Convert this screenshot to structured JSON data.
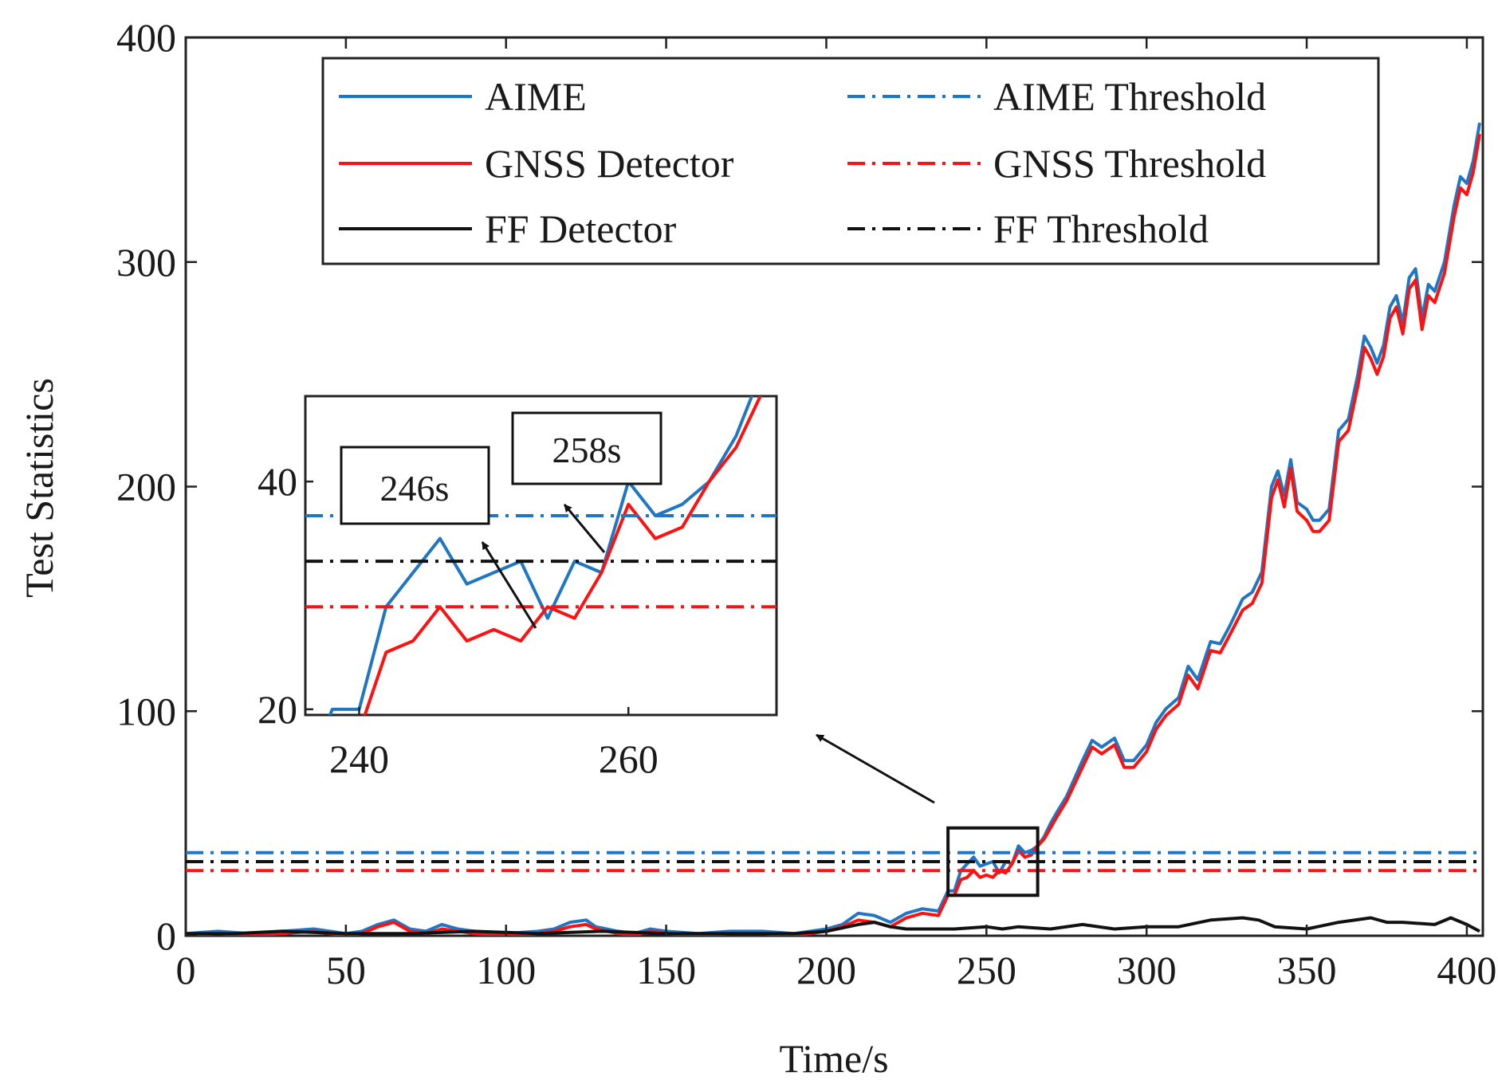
{
  "chart_data": {
    "type": "line",
    "xlabel": "Time/s",
    "ylabel": "Test Statistics",
    "xlim": [
      0,
      405
    ],
    "ylim": [
      0,
      400
    ],
    "xticks": [
      0,
      50,
      100,
      150,
      200,
      250,
      300,
      350,
      400
    ],
    "yticks": [
      0,
      100,
      200,
      300,
      400
    ],
    "x_tick_labels": [
      "0",
      "50",
      "100",
      "150",
      "200",
      "250",
      "300",
      "350",
      "400"
    ],
    "y_tick_labels": [
      "0",
      "100",
      "200",
      "300",
      "400"
    ],
    "legend_position": "top",
    "colors": {
      "aime": "#1f77c4",
      "gnss": "#ff1111",
      "ff": "#111111"
    },
    "series": [
      {
        "key": "aime",
        "name": "AIME",
        "style": "solid",
        "color": "#1f77c4",
        "points": [
          [
            0,
            1
          ],
          [
            10,
            2
          ],
          [
            20,
            1
          ],
          [
            30,
            2
          ],
          [
            40,
            3
          ],
          [
            50,
            1
          ],
          [
            55,
            2
          ],
          [
            60,
            5
          ],
          [
            65,
            7
          ],
          [
            70,
            3
          ],
          [
            75,
            2
          ],
          [
            80,
            5
          ],
          [
            85,
            3
          ],
          [
            90,
            2
          ],
          [
            100,
            1
          ],
          [
            110,
            2
          ],
          [
            115,
            3
          ],
          [
            120,
            6
          ],
          [
            125,
            7
          ],
          [
            128,
            4
          ],
          [
            135,
            2
          ],
          [
            140,
            1
          ],
          [
            145,
            3
          ],
          [
            150,
            2
          ],
          [
            160,
            1
          ],
          [
            170,
            2
          ],
          [
            180,
            2
          ],
          [
            190,
            1
          ],
          [
            200,
            3
          ],
          [
            205,
            5
          ],
          [
            210,
            10
          ],
          [
            215,
            9
          ],
          [
            220,
            6
          ],
          [
            225,
            10
          ],
          [
            230,
            12
          ],
          [
            235,
            11
          ],
          [
            238,
            20
          ],
          [
            240,
            20
          ],
          [
            242,
            29
          ],
          [
            244,
            32
          ],
          [
            246,
            35
          ],
          [
            248,
            31
          ],
          [
            250,
            32
          ],
          [
            252,
            33
          ],
          [
            254,
            28
          ],
          [
            256,
            33
          ],
          [
            258,
            32
          ],
          [
            260,
            40
          ],
          [
            262,
            37
          ],
          [
            264,
            38
          ],
          [
            266,
            40
          ],
          [
            268,
            44
          ],
          [
            270,
            50
          ],
          [
            272,
            55
          ],
          [
            275,
            62
          ],
          [
            280,
            78
          ],
          [
            283,
            87
          ],
          [
            286,
            84
          ],
          [
            290,
            88
          ],
          [
            293,
            78
          ],
          [
            296,
            78
          ],
          [
            300,
            85
          ],
          [
            303,
            95
          ],
          [
            306,
            101
          ],
          [
            310,
            106
          ],
          [
            313,
            120
          ],
          [
            316,
            114
          ],
          [
            320,
            131
          ],
          [
            323,
            130
          ],
          [
            326,
            138
          ],
          [
            330,
            150
          ],
          [
            333,
            153
          ],
          [
            336,
            162
          ],
          [
            339,
            200
          ],
          [
            341,
            207
          ],
          [
            343,
            196
          ],
          [
            345,
            212
          ],
          [
            347,
            193
          ],
          [
            350,
            190
          ],
          [
            352,
            185
          ],
          [
            354,
            185
          ],
          [
            357,
            190
          ],
          [
            360,
            225
          ],
          [
            363,
            230
          ],
          [
            366,
            250
          ],
          [
            368,
            267
          ],
          [
            370,
            262
          ],
          [
            372,
            255
          ],
          [
            374,
            263
          ],
          [
            376,
            280
          ],
          [
            378,
            285
          ],
          [
            380,
            273
          ],
          [
            382,
            293
          ],
          [
            384,
            297
          ],
          [
            386,
            275
          ],
          [
            388,
            290
          ],
          [
            390,
            287
          ],
          [
            393,
            300
          ],
          [
            396,
            325
          ],
          [
            398,
            338
          ],
          [
            400,
            335
          ],
          [
            402,
            345
          ],
          [
            404,
            362
          ]
        ]
      },
      {
        "key": "gnss",
        "name": "GNSS Detector",
        "style": "solid",
        "color": "#ff1111",
        "points": [
          [
            0,
            0
          ],
          [
            10,
            1
          ],
          [
            20,
            0
          ],
          [
            30,
            1
          ],
          [
            40,
            2
          ],
          [
            50,
            0
          ],
          [
            55,
            1
          ],
          [
            60,
            4
          ],
          [
            65,
            6
          ],
          [
            70,
            2
          ],
          [
            75,
            1
          ],
          [
            80,
            3
          ],
          [
            85,
            2
          ],
          [
            90,
            1
          ],
          [
            100,
            0
          ],
          [
            110,
            1
          ],
          [
            115,
            2
          ],
          [
            120,
            4
          ],
          [
            125,
            5
          ],
          [
            128,
            3
          ],
          [
            135,
            1
          ],
          [
            140,
            0
          ],
          [
            145,
            2
          ],
          [
            150,
            1
          ],
          [
            160,
            0
          ],
          [
            170,
            1
          ],
          [
            180,
            1
          ],
          [
            190,
            0
          ],
          [
            200,
            2
          ],
          [
            205,
            4
          ],
          [
            210,
            7
          ],
          [
            215,
            6
          ],
          [
            220,
            4
          ],
          [
            225,
            8
          ],
          [
            230,
            10
          ],
          [
            235,
            9
          ],
          [
            238,
            18
          ],
          [
            240,
            18
          ],
          [
            242,
            25
          ],
          [
            244,
            26
          ],
          [
            246,
            29
          ],
          [
            248,
            26
          ],
          [
            250,
            27
          ],
          [
            252,
            26
          ],
          [
            254,
            29
          ],
          [
            256,
            28
          ],
          [
            258,
            32
          ],
          [
            260,
            38
          ],
          [
            262,
            35
          ],
          [
            264,
            36
          ],
          [
            266,
            40
          ],
          [
            268,
            43
          ],
          [
            270,
            48
          ],
          [
            272,
            53
          ],
          [
            275,
            60
          ],
          [
            280,
            75
          ],
          [
            283,
            84
          ],
          [
            286,
            81
          ],
          [
            290,
            85
          ],
          [
            293,
            75
          ],
          [
            296,
            75
          ],
          [
            300,
            82
          ],
          [
            303,
            92
          ],
          [
            306,
            98
          ],
          [
            310,
            103
          ],
          [
            313,
            116
          ],
          [
            316,
            110
          ],
          [
            320,
            127
          ],
          [
            323,
            126
          ],
          [
            326,
            134
          ],
          [
            330,
            145
          ],
          [
            333,
            148
          ],
          [
            336,
            157
          ],
          [
            339,
            195
          ],
          [
            341,
            203
          ],
          [
            343,
            191
          ],
          [
            345,
            208
          ],
          [
            347,
            189
          ],
          [
            350,
            185
          ],
          [
            352,
            180
          ],
          [
            354,
            180
          ],
          [
            357,
            185
          ],
          [
            360,
            220
          ],
          [
            363,
            225
          ],
          [
            366,
            245
          ],
          [
            368,
            262
          ],
          [
            370,
            257
          ],
          [
            372,
            250
          ],
          [
            374,
            258
          ],
          [
            376,
            275
          ],
          [
            378,
            280
          ],
          [
            380,
            268
          ],
          [
            382,
            288
          ],
          [
            384,
            292
          ],
          [
            386,
            270
          ],
          [
            388,
            285
          ],
          [
            390,
            282
          ],
          [
            393,
            295
          ],
          [
            396,
            320
          ],
          [
            398,
            333
          ],
          [
            400,
            330
          ],
          [
            402,
            340
          ],
          [
            404,
            357
          ]
        ]
      },
      {
        "key": "ff",
        "name": "FF Detector",
        "style": "solid",
        "color": "#111111",
        "points": [
          [
            0,
            1
          ],
          [
            15,
            1
          ],
          [
            30,
            2
          ],
          [
            50,
            1
          ],
          [
            70,
            1
          ],
          [
            90,
            2
          ],
          [
            110,
            1
          ],
          [
            130,
            2
          ],
          [
            150,
            1
          ],
          [
            170,
            1
          ],
          [
            190,
            1
          ],
          [
            200,
            2
          ],
          [
            210,
            5
          ],
          [
            215,
            6
          ],
          [
            220,
            4
          ],
          [
            225,
            3
          ],
          [
            230,
            3
          ],
          [
            240,
            3
          ],
          [
            250,
            4
          ],
          [
            255,
            3
          ],
          [
            260,
            4
          ],
          [
            270,
            3
          ],
          [
            280,
            5
          ],
          [
            290,
            3
          ],
          [
            300,
            4
          ],
          [
            310,
            4
          ],
          [
            320,
            7
          ],
          [
            330,
            8
          ],
          [
            335,
            7
          ],
          [
            340,
            4
          ],
          [
            350,
            3
          ],
          [
            360,
            6
          ],
          [
            370,
            8
          ],
          [
            375,
            6
          ],
          [
            380,
            6
          ],
          [
            390,
            5
          ],
          [
            395,
            8
          ],
          [
            400,
            5
          ],
          [
            404,
            2
          ]
        ]
      },
      {
        "key": "aime_th",
        "name": "AIME Threshold",
        "style": "dashdot",
        "color": "#1f77c4",
        "constant": 37
      },
      {
        "key": "gnss_th",
        "name": "GNSS Threshold",
        "style": "dashdot",
        "color": "#ff1111",
        "constant": 29
      },
      {
        "key": "ff_th",
        "name": "FF Threshold",
        "style": "dashdot",
        "color": "#111111",
        "constant": 33
      }
    ],
    "zoom_region": {
      "xlim": [
        238,
        266
      ],
      "ylim": [
        18,
        48
      ]
    },
    "inset": {
      "xlim": [
        236,
        271
      ],
      "ylim": [
        19.5,
        47.5
      ],
      "xticks": [
        240,
        260
      ],
      "yticks": [
        20,
        40
      ],
      "x_tick_labels": [
        "240",
        "260"
      ],
      "y_tick_labels": [
        "20",
        "40"
      ]
    },
    "annotations": [
      {
        "text": "246s",
        "points_to_x": 246
      },
      {
        "text": "258s",
        "points_to_x": 258
      }
    ]
  }
}
